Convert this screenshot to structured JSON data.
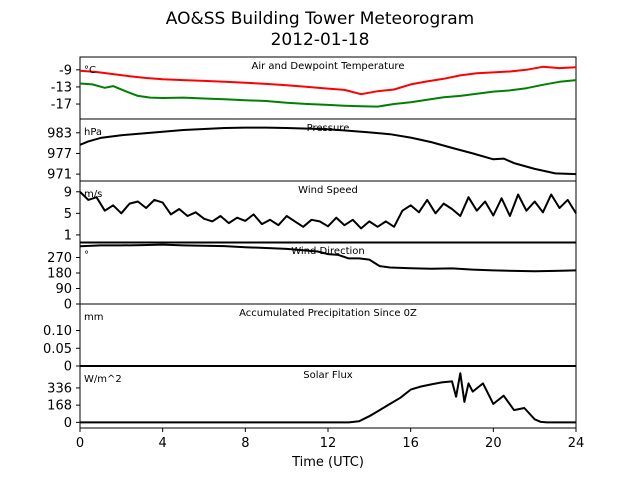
{
  "title_line1": "AO&SS Building Tower Meteorogram",
  "title_line2": "2012-01-18",
  "x_axis": {
    "label": "Time (UTC)",
    "ticks": [
      0,
      4,
      8,
      12,
      16,
      20,
      24
    ],
    "range": [
      0,
      24
    ]
  },
  "colors": {
    "temperature": "#ff0000",
    "dewpoint": "#008000",
    "other": "#000000"
  },
  "chart_data": [
    {
      "type": "line",
      "title": "Air and Dewpoint Temperature",
      "unit": "°C",
      "ylim": [
        -20.5,
        -6
      ],
      "yticks": [
        -9,
        -13,
        -17
      ],
      "series": [
        {
          "color": "red",
          "x": [
            0,
            0.8,
            1.6,
            2.4,
            3.2,
            4,
            5,
            6,
            7,
            8,
            9,
            10,
            11,
            12,
            12.8,
            13.6,
            14.4,
            15.2,
            16,
            16.8,
            17.6,
            18.4,
            19.2,
            20,
            20.8,
            21.6,
            22.4,
            23.2,
            24
          ],
          "y": [
            -9.2,
            -9.5,
            -10,
            -10.5,
            -10.9,
            -11.2,
            -11.4,
            -11.6,
            -11.8,
            -12,
            -12.3,
            -12.6,
            -13,
            -13.4,
            -13.7,
            -14.7,
            -14,
            -13.6,
            -12.4,
            -11.7,
            -11.1,
            -10.3,
            -9.8,
            -9.6,
            -9.4,
            -9,
            -8.3,
            -8.6,
            -8.4
          ]
        },
        {
          "color": "green",
          "x": [
            0,
            0.6,
            1.2,
            1.6,
            2.2,
            2.8,
            3.4,
            4,
            5,
            6,
            7,
            8,
            9,
            10,
            11,
            12,
            12.8,
            13.6,
            14.4,
            15.2,
            16,
            16.8,
            17.6,
            18.4,
            19.2,
            20,
            20.8,
            21.6,
            22.4,
            23.2,
            24
          ],
          "y": [
            -12.2,
            -12.4,
            -13.2,
            -12.8,
            -14,
            -15.1,
            -15.5,
            -15.6,
            -15.5,
            -15.7,
            -15.9,
            -16.1,
            -16.3,
            -16.7,
            -17,
            -17.2,
            -17.4,
            -17.5,
            -17.6,
            -17,
            -16.6,
            -16,
            -15.4,
            -15.1,
            -14.6,
            -14.1,
            -13.8,
            -13.3,
            -12.5,
            -11.8,
            -11.4
          ]
        }
      ]
    },
    {
      "type": "line",
      "title": "Pressure",
      "unit": "hPa",
      "ylim": [
        969,
        987
      ],
      "yticks": [
        983,
        977,
        971
      ],
      "series": [
        {
          "color": "black",
          "x": [
            0,
            0.4,
            1,
            2,
            3,
            4,
            5,
            6,
            7,
            8,
            9,
            10,
            11,
            12,
            13,
            14,
            15,
            16,
            17,
            18,
            19,
            20,
            20.5,
            21,
            22,
            23,
            24
          ],
          "y": [
            979.5,
            980.5,
            981.5,
            982.3,
            982.8,
            983.3,
            983.8,
            984.1,
            984.4,
            984.5,
            984.5,
            984.4,
            984.2,
            984,
            983.6,
            983.1,
            982.6,
            981.6,
            980.3,
            978.6,
            977,
            975.3,
            975.5,
            974.2,
            972.5,
            971.2,
            971
          ]
        }
      ]
    },
    {
      "type": "line",
      "title": "Wind Speed",
      "unit": "m/s",
      "ylim": [
        -0.5,
        11
      ],
      "yticks": [
        9,
        5,
        1
      ],
      "series": [
        {
          "color": "black",
          "x": [
            0,
            0.4,
            0.8,
            1.2,
            1.6,
            2,
            2.4,
            2.8,
            3.2,
            3.6,
            4,
            4.4,
            4.8,
            5.2,
            5.6,
            6,
            6.4,
            6.8,
            7.2,
            7.6,
            8,
            8.4,
            8.8,
            9.2,
            9.6,
            10,
            10.4,
            10.8,
            11.2,
            11.6,
            12,
            12.4,
            12.8,
            13.2,
            13.6,
            14,
            14.4,
            14.8,
            15.2,
            15.6,
            16,
            16.4,
            16.8,
            17.2,
            17.6,
            18,
            18.4,
            18.8,
            19.2,
            19.6,
            20,
            20.4,
            20.8,
            21.2,
            21.6,
            22,
            22.4,
            22.8,
            23.2,
            23.6,
            24
          ],
          "y": [
            9,
            7.5,
            8,
            5.5,
            6.5,
            5,
            6.8,
            7.2,
            6,
            7.5,
            7,
            4.8,
            5.8,
            4.5,
            5.2,
            4,
            3.5,
            4.5,
            3.2,
            4.2,
            3.6,
            4.8,
            3,
            3.8,
            2.8,
            4.5,
            3.5,
            2.5,
            3.8,
            3.5,
            2.6,
            4.2,
            2.8,
            3.8,
            2.2,
            3.5,
            2.5,
            3.5,
            2.5,
            5.5,
            6.5,
            5.2,
            7.5,
            5,
            6.8,
            5.8,
            4.5,
            8,
            5.5,
            7.2,
            4.6,
            7.8,
            4.5,
            8.5,
            5.5,
            7.2,
            5.2,
            8.5,
            6,
            7.5,
            5
          ]
        }
      ]
    },
    {
      "type": "line",
      "title": "Wind Direction",
      "unit": "°",
      "ylim": [
        0,
        360
      ],
      "yticks": [
        270,
        180,
        90,
        0
      ],
      "series": [
        {
          "color": "black",
          "x": [
            0,
            1,
            2,
            3,
            4,
            5,
            6,
            7,
            8,
            9,
            10,
            11,
            11.5,
            12,
            12.5,
            13,
            13.5,
            14,
            14.5,
            15,
            16,
            17,
            18,
            19,
            20,
            21,
            22,
            23,
            24
          ],
          "y": [
            335,
            340,
            340,
            342,
            345,
            340,
            338,
            336,
            330,
            325,
            320,
            310,
            305,
            290,
            285,
            265,
            265,
            258,
            220,
            212,
            208,
            205,
            207,
            200,
            195,
            192,
            190,
            192,
            195
          ]
        }
      ]
    },
    {
      "type": "line",
      "title": "Accumulated Precipitation Since 0Z",
      "unit": "mm",
      "ylim": [
        0,
        0.175
      ],
      "yticks": [
        0.1,
        0.05,
        0.0
      ],
      "series": [
        {
          "color": "black",
          "x": [
            0,
            24
          ],
          "y": [
            0,
            0
          ]
        }
      ]
    },
    {
      "type": "line",
      "title": "Solar Flux",
      "unit": "W/m^2",
      "ylim": [
        -55,
        550
      ],
      "yticks": [
        336,
        168,
        0
      ],
      "series": [
        {
          "color": "black",
          "x": [
            0,
            13,
            13.5,
            14,
            14.5,
            15,
            15.5,
            16,
            16.5,
            17,
            17.5,
            18,
            18.2,
            18.4,
            18.6,
            18.8,
            19,
            19.5,
            20,
            20.5,
            21,
            21.5,
            22,
            22.3,
            22.6,
            23,
            24
          ],
          "y": [
            0,
            0,
            10,
            60,
            120,
            180,
            240,
            320,
            350,
            370,
            390,
            400,
            250,
            480,
            200,
            380,
            300,
            380,
            180,
            260,
            120,
            140,
            30,
            5,
            0,
            0,
            0
          ]
        }
      ]
    }
  ]
}
